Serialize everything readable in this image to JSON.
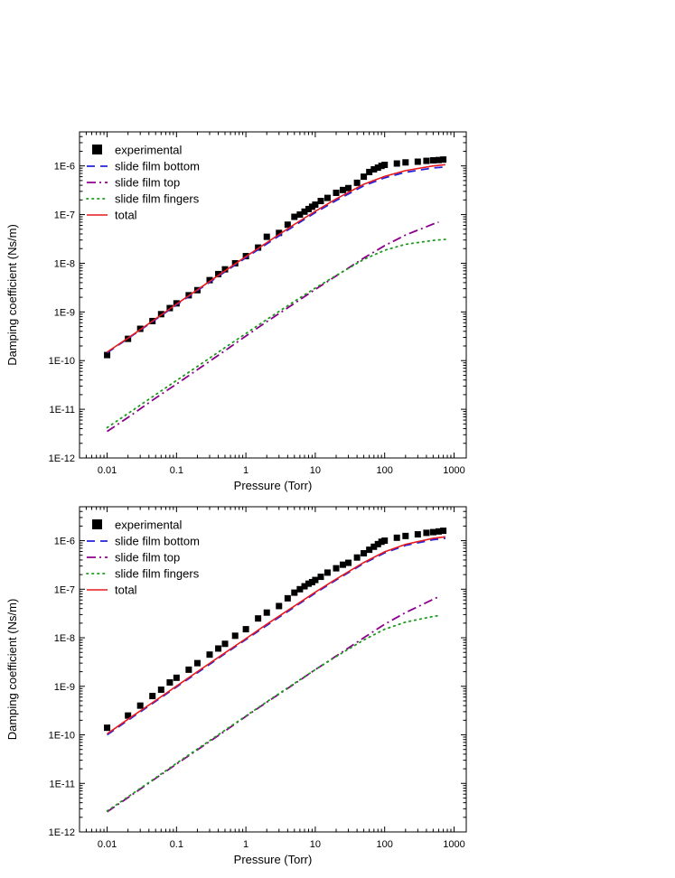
{
  "chart_data": [
    {
      "type": "line",
      "title": "",
      "xlabel": "Pressure (Torr)",
      "ylabel": "Damping coefficient (Ns/m)",
      "xscale": "log",
      "yscale": "log",
      "xlim": [
        0.004,
        1500
      ],
      "ylim": [
        1e-12,
        5e-06
      ],
      "xticks": [
        0.01,
        0.1,
        1,
        10,
        100,
        1000
      ],
      "xtick_labels": [
        "0.01",
        "0.1",
        "1",
        "10",
        "100",
        "1000"
      ],
      "yticks": [
        1e-12,
        1e-11,
        1e-10,
        1e-09,
        1e-08,
        1e-07,
        1e-06
      ],
      "ytick_labels": [
        "1E-12",
        "1E-11",
        "1E-10",
        "1E-9",
        "1E-8",
        "1E-7",
        "1E-6"
      ],
      "legend": "top-left",
      "grid": false,
      "series": [
        {
          "name": "experimental",
          "style": "square-markers",
          "color": "#000000",
          "x": [
            0.01,
            0.02,
            0.03,
            0.045,
            0.06,
            0.08,
            0.1,
            0.15,
            0.2,
            0.3,
            0.4,
            0.5,
            0.7,
            1,
            1.5,
            2,
            3,
            4,
            5,
            6,
            7,
            8,
            9,
            10,
            12,
            15,
            20,
            25,
            30,
            40,
            50,
            60,
            70,
            80,
            90,
            100,
            150,
            200,
            300,
            400,
            500,
            600,
            700
          ],
          "y": [
            1.3e-10,
            2.8e-10,
            4.5e-10,
            6.5e-10,
            9e-10,
            1.2e-09,
            1.5e-09,
            2.2e-09,
            2.8e-09,
            4.5e-09,
            6e-09,
            7.5e-09,
            1e-08,
            1.4e-08,
            2.1e-08,
            3.5e-08,
            4.2e-08,
            6.2e-08,
            9e-08,
            1e-07,
            1.15e-07,
            1.3e-07,
            1.45e-07,
            1.6e-07,
            1.9e-07,
            2.2e-07,
            2.8e-07,
            3.2e-07,
            3.5e-07,
            4.5e-07,
            6e-07,
            7.5e-07,
            8.5e-07,
            9.2e-07,
            1e-06,
            1.05e-06,
            1.12e-06,
            1.18e-06,
            1.22e-06,
            1.27e-06,
            1.3e-06,
            1.32e-06,
            1.35e-06
          ]
        },
        {
          "name": "slide film bottom",
          "style": "dash",
          "color": "#2222dd",
          "x": [
            0.01,
            0.02,
            0.05,
            0.1,
            0.2,
            0.5,
            1,
            2,
            5,
            10,
            20,
            50,
            100,
            200,
            500,
            750
          ],
          "y": [
            1.45e-10,
            2.85e-10,
            7e-10,
            1.4e-09,
            2.75e-09,
            6.7e-09,
            1.3e-08,
            2.5e-08,
            5.9e-08,
            1.1e-07,
            1.95e-07,
            3.9e-07,
            5.7e-07,
            7.4e-07,
            9.1e-07,
            9.5e-07
          ]
        },
        {
          "name": "slide film top",
          "style": "dash-dot",
          "color": "#8b008b",
          "x": [
            0.01,
            0.02,
            0.05,
            0.1,
            0.2,
            0.5,
            1,
            2,
            5,
            10,
            20,
            50,
            100,
            200,
            500,
            600
          ],
          "y": [
            3.5e-12,
            6.8e-12,
            1.7e-11,
            3.3e-11,
            6.5e-11,
            1.6e-10,
            3.2e-10,
            6.3e-10,
            1.5e-09,
            2.9e-09,
            5.5e-09,
            1.28e-08,
            2.3e-08,
            3.8e-08,
            6.4e-08,
            7e-08
          ]
        },
        {
          "name": "slide film fingers",
          "style": "dot",
          "color": "#1a9a1a",
          "x": [
            0.01,
            0.02,
            0.05,
            0.1,
            0.2,
            0.5,
            1,
            2,
            5,
            10,
            20,
            50,
            100,
            200,
            500,
            750
          ],
          "y": [
            4.2e-12,
            8.2e-12,
            2e-11,
            3.9e-11,
            7.6e-11,
            1.85e-10,
            3.6e-10,
            7e-10,
            1.65e-09,
            3.1e-09,
            5.6e-09,
            1.2e-08,
            1.85e-08,
            2.45e-08,
            2.95e-08,
            3.1e-08
          ]
        },
        {
          "name": "total",
          "style": "solid",
          "color": "#e8191c",
          "x": [
            0.01,
            0.02,
            0.05,
            0.1,
            0.2,
            0.5,
            1,
            2,
            5,
            10,
            20,
            50,
            100,
            200,
            500,
            750
          ],
          "y": [
            1.5e-10,
            2.9e-10,
            7.2e-10,
            1.45e-09,
            2.85e-09,
            7e-09,
            1.37e-08,
            2.65e-08,
            6.3e-08,
            1.17e-07,
            2.1e-07,
            4.2e-07,
            6.1e-07,
            8e-07,
            1e-06,
            1.06e-06
          ]
        }
      ]
    },
    {
      "type": "line",
      "title": "",
      "xlabel": "Pressure (Torr)",
      "ylabel": "Damping coefficient (Ns/m)",
      "xscale": "log",
      "yscale": "log",
      "xlim": [
        0.004,
        1500
      ],
      "ylim": [
        1e-12,
        5e-06
      ],
      "xticks": [
        0.01,
        0.1,
        1,
        10,
        100,
        1000
      ],
      "xtick_labels": [
        "0.01",
        "0.1",
        "1",
        "10",
        "100",
        "1000"
      ],
      "yticks": [
        1e-12,
        1e-11,
        1e-10,
        1e-09,
        1e-08,
        1e-07,
        1e-06
      ],
      "ytick_labels": [
        "1E-12",
        "1E-11",
        "1E-10",
        "1E-9",
        "1E-8",
        "1E-7",
        "1E-6"
      ],
      "legend": "top-left",
      "grid": false,
      "series": [
        {
          "name": "experimental",
          "style": "square-markers",
          "color": "#000000",
          "x": [
            0.01,
            0.02,
            0.03,
            0.045,
            0.06,
            0.08,
            0.1,
            0.15,
            0.2,
            0.3,
            0.4,
            0.5,
            0.7,
            1,
            1.5,
            2,
            3,
            4,
            5,
            6,
            7,
            8,
            9,
            10,
            12,
            15,
            20,
            25,
            30,
            40,
            50,
            60,
            70,
            80,
            90,
            100,
            150,
            200,
            300,
            400,
            500,
            600,
            700
          ],
          "y": [
            1.4e-10,
            2.5e-10,
            4e-10,
            6.3e-10,
            8.5e-10,
            1.2e-09,
            1.5e-09,
            2.2e-09,
            3e-09,
            4.5e-09,
            6e-09,
            7.5e-09,
            1.1e-08,
            1.5e-08,
            2.5e-08,
            3.3e-08,
            4.5e-08,
            6.5e-08,
            8.5e-08,
            1e-07,
            1.15e-07,
            1.3e-07,
            1.4e-07,
            1.55e-07,
            1.8e-07,
            2.2e-07,
            2.7e-07,
            3.2e-07,
            3.5e-07,
            4.5e-07,
            5.5e-07,
            6.5e-07,
            7.5e-07,
            8.5e-07,
            9.5e-07,
            1e-06,
            1.15e-06,
            1.25e-06,
            1.35e-06,
            1.45e-06,
            1.5e-06,
            1.55e-06,
            1.6e-06
          ]
        },
        {
          "name": "slide film bottom",
          "style": "dash",
          "color": "#2222dd",
          "x": [
            0.01,
            0.02,
            0.05,
            0.1,
            0.2,
            0.5,
            1,
            2,
            5,
            10,
            20,
            50,
            100,
            200,
            500,
            750
          ],
          "y": [
            1e-10,
            2e-10,
            4.9e-10,
            9.7e-10,
            1.9e-09,
            4.7e-09,
            9.2e-09,
            1.8e-08,
            4.3e-08,
            8.3e-08,
            1.55e-07,
            3.4e-07,
            5.6e-07,
            8e-07,
            1.05e-06,
            1.12e-06
          ]
        },
        {
          "name": "slide film top",
          "style": "dash-dot",
          "color": "#8b008b",
          "x": [
            0.01,
            0.02,
            0.05,
            0.1,
            0.2,
            0.5,
            1,
            2,
            5,
            10,
            20,
            50,
            100,
            200,
            500,
            600
          ],
          "y": [
            2.6e-12,
            5.1e-12,
            1.27e-11,
            2.5e-11,
            4.9e-11,
            1.2e-10,
            2.4e-10,
            4.7e-10,
            1.12e-09,
            2.2e-09,
            4.2e-09,
            1e-08,
            1.9e-08,
            3.3e-08,
            6.2e-08,
            7e-08
          ]
        },
        {
          "name": "slide film fingers",
          "style": "dot",
          "color": "#1a9a1a",
          "x": [
            0.01,
            0.02,
            0.05,
            0.1,
            0.2,
            0.5,
            1,
            2,
            5,
            10,
            20,
            50,
            100,
            200,
            500,
            600
          ],
          "y": [
            2.7e-12,
            5.3e-12,
            1.3e-11,
            2.6e-11,
            5.1e-11,
            1.25e-10,
            2.45e-10,
            4.8e-10,
            1.15e-09,
            2.2e-09,
            4.1e-09,
            9e-09,
            1.5e-08,
            2.1e-08,
            2.75e-08,
            2.85e-08
          ]
        },
        {
          "name": "total",
          "style": "solid",
          "color": "#e8191c",
          "x": [
            0.01,
            0.02,
            0.05,
            0.1,
            0.2,
            0.5,
            1,
            2,
            5,
            10,
            20,
            50,
            100,
            200,
            500,
            750
          ],
          "y": [
            1.05e-10,
            2.1e-10,
            5.1e-10,
            1.01e-09,
            2e-09,
            4.9e-09,
            9.6e-09,
            1.9e-08,
            4.5e-08,
            8.7e-08,
            1.62e-07,
            3.55e-07,
            5.9e-07,
            8.4e-07,
            1.12e-06,
            1.2e-06
          ]
        }
      ]
    }
  ]
}
